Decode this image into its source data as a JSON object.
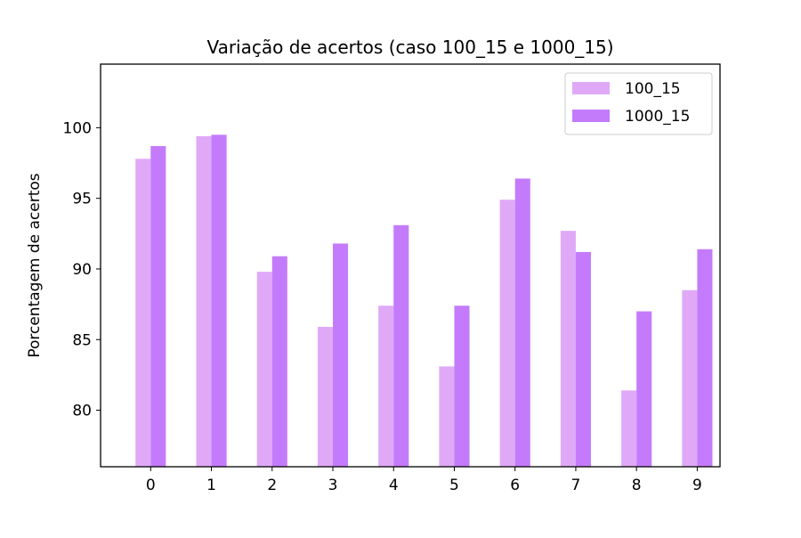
{
  "colors": {
    "series_0": "#dfa9f8",
    "series_1": "#c47bfb",
    "axes": "#000000",
    "legend_border": "#cccccc"
  },
  "chart_data": {
    "type": "bar",
    "title": "Variação de acertos (caso 100_15 e 1000_15)",
    "xlabel": "",
    "ylabel": "Porcentagem de acertos",
    "categories": [
      "0",
      "1",
      "2",
      "3",
      "4",
      "5",
      "6",
      "7",
      "8",
      "9"
    ],
    "series": [
      {
        "name": "100_15",
        "values": [
          97.8,
          99.4,
          89.8,
          85.9,
          87.4,
          83.1,
          94.9,
          92.7,
          81.4,
          88.5
        ]
      },
      {
        "name": "1000_15",
        "values": [
          98.7,
          99.5,
          90.9,
          91.8,
          93.1,
          87.4,
          96.4,
          91.2,
          87.0,
          91.4
        ]
      }
    ],
    "ylim": [
      76,
      104.5
    ],
    "yticks": [
      80,
      85,
      90,
      95,
      100
    ],
    "grid": false,
    "legend_position": "top-right"
  }
}
